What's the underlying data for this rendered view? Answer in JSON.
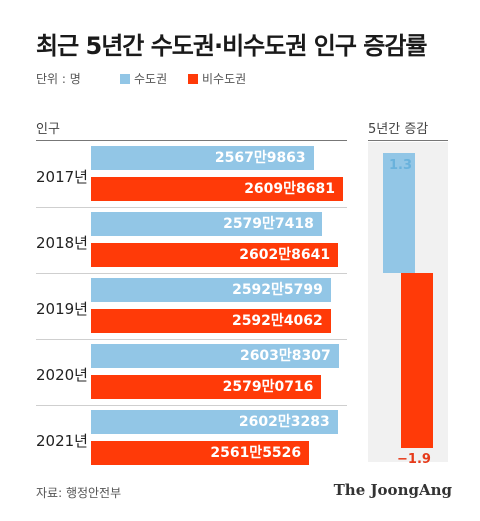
{
  "title": "최근 5년간 수도권·비수도권 인구 증감률",
  "unit_label": "단위 : 명",
  "left_header": "인구",
  "right_header": "5년간 증감",
  "source": "자료: 행정안전부",
  "brand": "The JoongAng",
  "colors": {
    "capital": "#92c6e6",
    "noncapital": "#ff3a08",
    "positive_label": "#6ab2dc",
    "negative_label": "#e63a1a"
  },
  "chart_data": [
    {
      "type": "bar",
      "orientation": "horizontal",
      "categories": [
        "2017년",
        "2018년",
        "2019년",
        "2020년",
        "2021년"
      ],
      "series": [
        {
          "name": "수도권",
          "values": [
            25679863,
            25797418,
            25925799,
            26038307,
            26023283
          ],
          "labels": [
            "2567만9863",
            "2579만7418",
            "2592만5799",
            "2603만8307",
            "2602만3283"
          ]
        },
        {
          "name": "비수도권",
          "values": [
            26098681,
            26028641,
            25924062,
            25790716,
            25615526
          ],
          "labels": [
            "2609만8681",
            "2602만8641",
            "2592만4062",
            "2579만0716",
            "2561만5526"
          ]
        }
      ]
    },
    {
      "type": "bar",
      "orientation": "vertical",
      "categories": [
        "수도권",
        "비수도권"
      ],
      "values": [
        1.3,
        -1.9
      ],
      "labels": [
        "1.3",
        "−1.9"
      ]
    }
  ]
}
